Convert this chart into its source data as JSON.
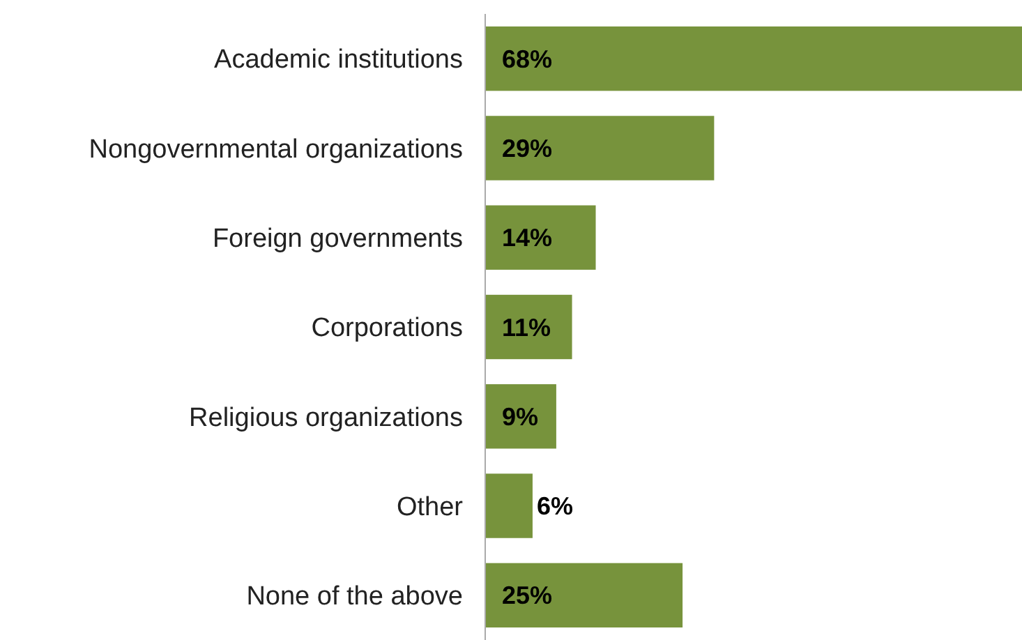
{
  "chart_data": {
    "type": "bar",
    "orientation": "horizontal",
    "categories": [
      "Academic institutions",
      "Nongovernmental organizations",
      "Foreign governments",
      "Corporations",
      "Religious organizations",
      "Other",
      "None of the above"
    ],
    "values": [
      68,
      29,
      14,
      11,
      9,
      6,
      25
    ],
    "value_labels": [
      "68%",
      "29%",
      "14%",
      "11%",
      "9%",
      "6%",
      "25%"
    ],
    "color": "#77933c"
  }
}
